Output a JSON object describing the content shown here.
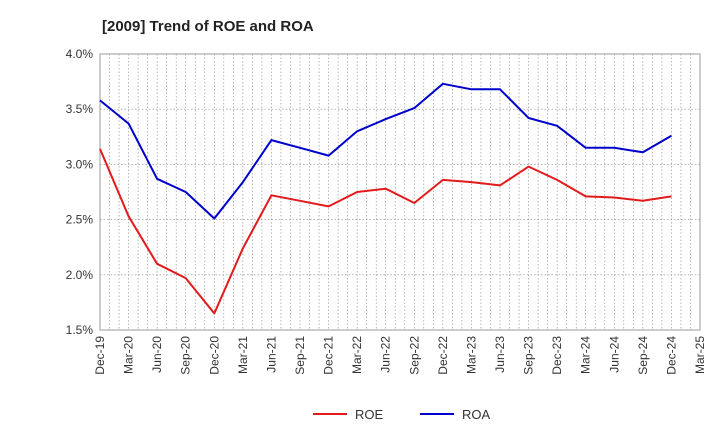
{
  "chart_data": {
    "type": "line",
    "title": "[2009]  Trend of ROE and ROA",
    "xlabel": "",
    "ylabel": "",
    "categories": [
      "Dec-19",
      "Mar-20",
      "Jun-20",
      "Sep-20",
      "Dec-20",
      "Mar-21",
      "Jun-21",
      "Sep-21",
      "Dec-21",
      "Mar-22",
      "Jun-22",
      "Sep-22",
      "Dec-22",
      "Mar-23",
      "Jun-23",
      "Sep-23",
      "Dec-23",
      "Mar-24",
      "Jun-24",
      "Sep-24",
      "Dec-24",
      "Mar-25"
    ],
    "ylim": [
      1.5,
      4.0
    ],
    "yticks": [
      "1.5%",
      "2.0%",
      "2.5%",
      "3.0%",
      "3.5%",
      "4.0%"
    ],
    "grid": true,
    "legend_position": "bottom",
    "series": [
      {
        "name": "ROE",
        "color": "#e31a1c",
        "values": [
          3.14,
          2.53,
          2.1,
          1.97,
          1.65,
          2.24,
          2.72,
          2.67,
          2.62,
          2.75,
          2.78,
          2.65,
          2.86,
          2.84,
          2.81,
          2.98,
          2.86,
          2.71,
          2.7,
          2.67,
          2.71,
          null
        ]
      },
      {
        "name": "ROA",
        "color": "#0000cc",
        "values": [
          3.58,
          3.37,
          2.87,
          2.75,
          2.51,
          2.84,
          3.22,
          3.15,
          3.08,
          3.3,
          3.41,
          3.51,
          3.73,
          3.68,
          3.68,
          3.42,
          3.35,
          3.15,
          3.15,
          3.11,
          3.26,
          null
        ]
      }
    ]
  }
}
